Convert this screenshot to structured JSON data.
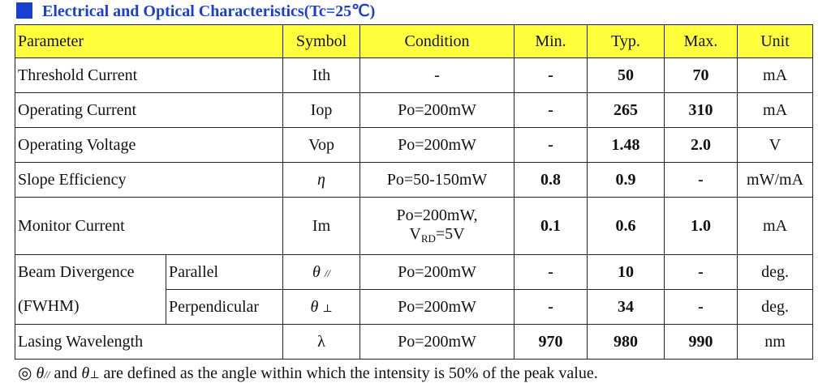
{
  "heading": {
    "title": "Electrical and Optical Characteristics(Tc=25℃)",
    "accent_color": "#1a3fd0",
    "header_fill": "#ffff3c"
  },
  "table": {
    "headers": [
      "Parameter",
      "Symbol",
      "Condition",
      "Min.",
      "Typ.",
      "Max.",
      "Unit"
    ],
    "rows": [
      {
        "param": "Threshold Current",
        "symbol": "Ith",
        "condition": "-",
        "min": "-",
        "typ": "50",
        "max": "70",
        "unit": "mA"
      },
      {
        "param": "Operating Current",
        "symbol": "Iop",
        "condition": "Po=200mW",
        "min": "-",
        "typ": "265",
        "max": "310",
        "unit": "mA"
      },
      {
        "param": "Operating Voltage",
        "symbol": "Vop",
        "condition": "Po=200mW",
        "min": "-",
        "typ": "1.48",
        "max": "2.0",
        "unit": "V"
      },
      {
        "param": "Slope Efficiency",
        "symbol": "η",
        "condition": "Po=50-150mW",
        "min": "0.8",
        "typ": "0.9",
        "max": "-",
        "unit": "mW/mA"
      },
      {
        "param": "Monitor Current",
        "symbol": "Im",
        "condition_line1": "Po=200mW,",
        "condition_line2_main": "V",
        "condition_line2_sub": "RD",
        "condition_line2_rest": "=5V",
        "min": "0.1",
        "typ": "0.6",
        "max": "1.0",
        "unit": "mA"
      },
      {
        "param_line1": "Beam Divergence",
        "param_line2": "(FWHM)",
        "sub1": "Parallel",
        "sub2": "Perpendicular",
        "symbol1": "θ",
        "symbol1_sub": "//",
        "symbol2": "θ",
        "symbol2_sub": "⊥",
        "condition1": "Po=200mW",
        "condition2": "Po=200mW",
        "min1": "-",
        "min2": "-",
        "typ1": "10",
        "typ2": "34",
        "max1": "-",
        "max2": "-",
        "unit1": "deg.",
        "unit2": "deg."
      },
      {
        "param": "Lasing Wavelength",
        "symbol": "λ",
        "condition": "Po=200mW",
        "min": "970",
        "typ": "980",
        "max": "990",
        "unit": "nm"
      }
    ]
  },
  "footnote": {
    "bullet": "◎",
    "theta1": "θ",
    "theta1_sub": "//",
    "and": "and",
    "theta2": "θ",
    "theta2_sub": "⊥",
    "text": "are defined as the angle within which the intensity is 50% of the peak value."
  }
}
